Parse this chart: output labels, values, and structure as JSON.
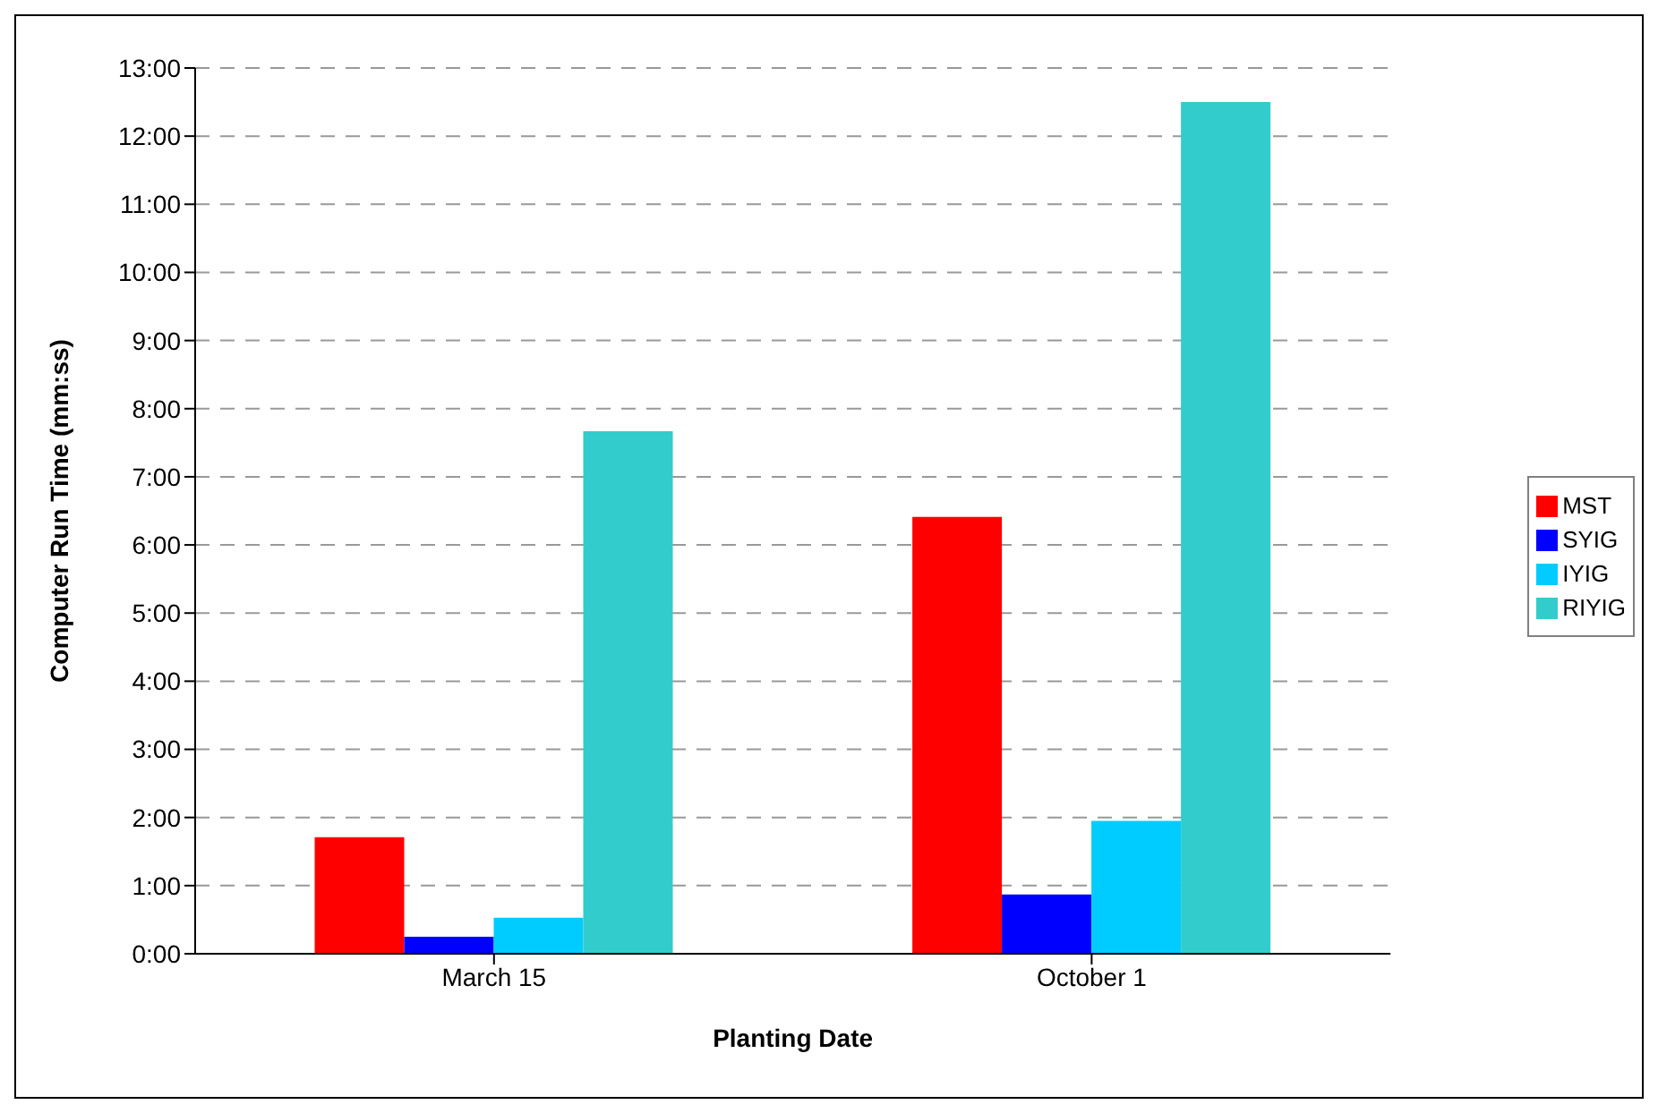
{
  "chart_data": {
    "type": "bar",
    "xlabel": "Planting Date",
    "ylabel": "Computer Run Time (mm:ss)",
    "categories": [
      "March 15",
      "October 1"
    ],
    "series": [
      {
        "name": "MST",
        "color": "#ff0000",
        "values": [
          1.71,
          6.41
        ]
      },
      {
        "name": "SYIG",
        "color": "#0000ff",
        "values": [
          0.25,
          0.87
        ]
      },
      {
        "name": "IYIG",
        "color": "#00ccff",
        "values": [
          0.53,
          1.95
        ]
      },
      {
        "name": "RIYIG",
        "color": "#33cccc",
        "values": [
          7.67,
          12.5
        ]
      }
    ],
    "ylim": [
      0,
      13
    ],
    "yticks": [
      {
        "value": 0,
        "label": "0:00"
      },
      {
        "value": 1,
        "label": "1:00"
      },
      {
        "value": 2,
        "label": "2:00"
      },
      {
        "value": 3,
        "label": "3:00"
      },
      {
        "value": 4,
        "label": "4:00"
      },
      {
        "value": 5,
        "label": "5:00"
      },
      {
        "value": 6,
        "label": "6:00"
      },
      {
        "value": 7,
        "label": "7:00"
      },
      {
        "value": 8,
        "label": "8:00"
      },
      {
        "value": 9,
        "label": "9:00"
      },
      {
        "value": 10,
        "label": "10:00"
      },
      {
        "value": 11,
        "label": "11:00"
      },
      {
        "value": 12,
        "label": "12:00"
      },
      {
        "value": 13,
        "label": "13:00"
      }
    ],
    "grid": "y",
    "legend": "right"
  }
}
